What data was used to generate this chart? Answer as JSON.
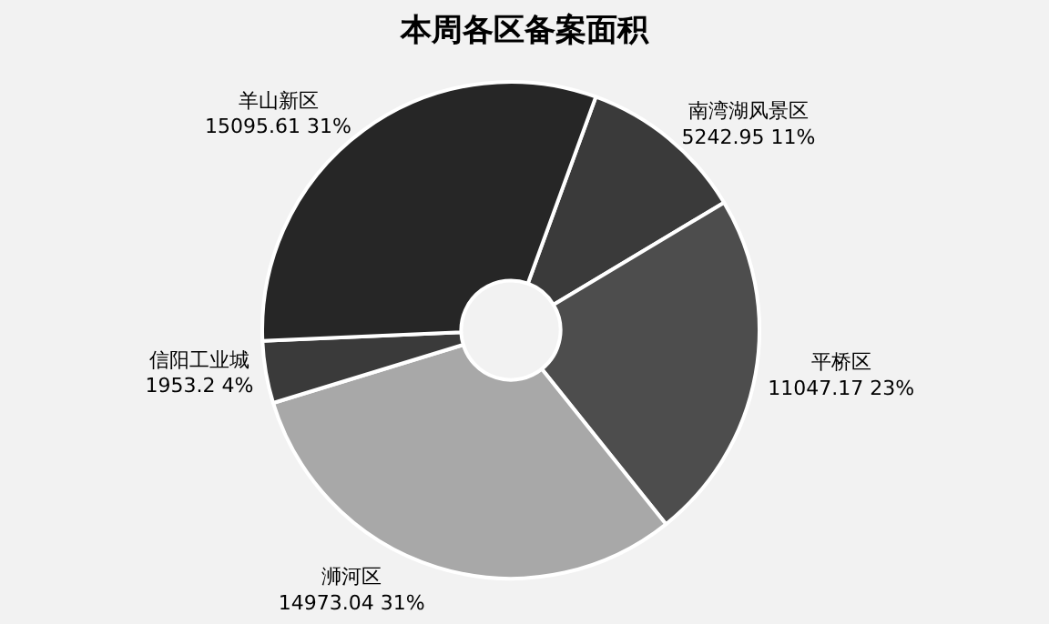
{
  "chart_data": {
    "type": "donut",
    "title": "本周各区备案面积",
    "categories": [
      "南湾湖风景区",
      "平桥区",
      "浉河区",
      "信阳工业城",
      "羊山新区"
    ],
    "values": [
      5242.95,
      11047.17,
      14973.04,
      1953.2,
      15095.61
    ],
    "value_labels": [
      "5242.95 11%",
      "11047.17 23%",
      "14973.04 31%",
      "1953.2 4%",
      "15095.61 31%"
    ],
    "colors": [
      "#3a3a3a",
      "#4d4d4d",
      "#a8a8a8",
      "#3a3a3a",
      "#262626"
    ],
    "legend": false
  }
}
